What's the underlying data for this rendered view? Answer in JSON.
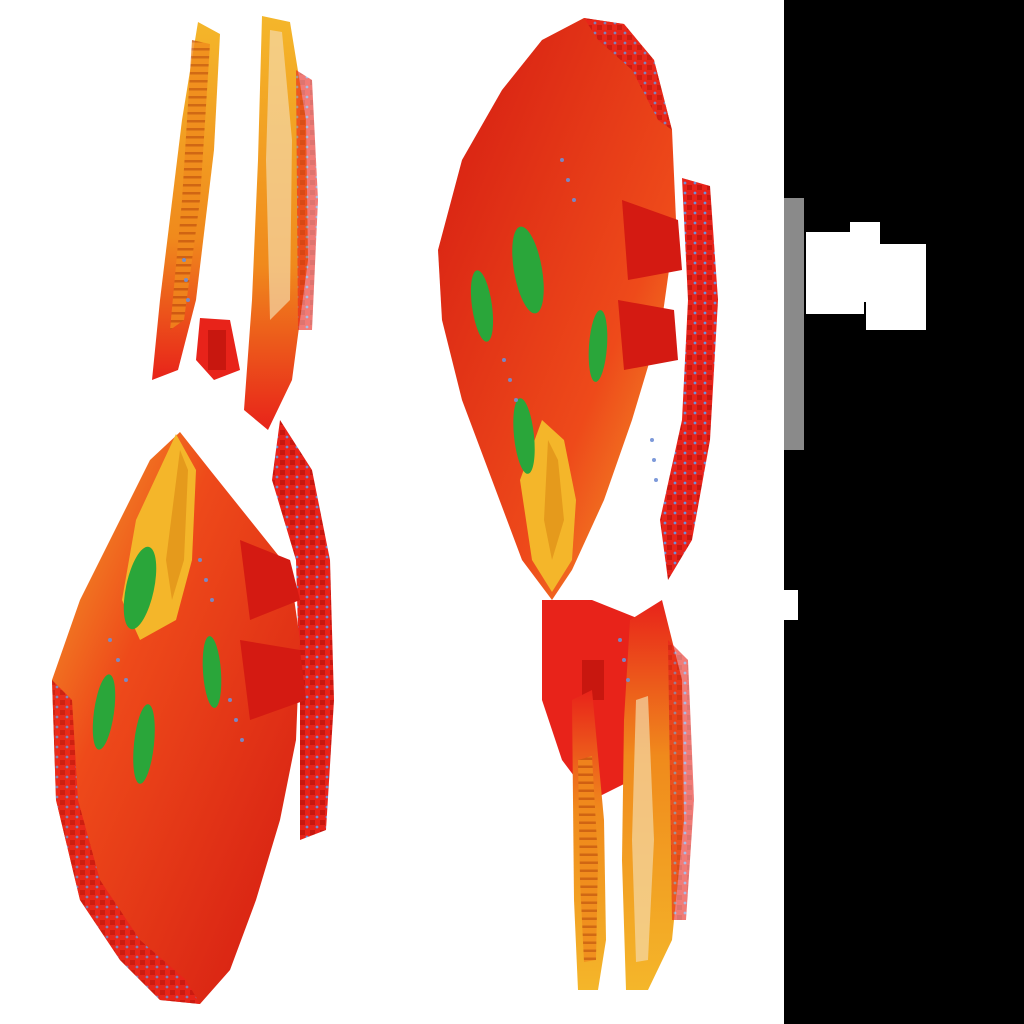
{
  "image": {
    "background": "#ffffff",
    "panel_color": "#000000",
    "subjects": [
      {
        "name": "ship-left",
        "orientation": "nose-down"
      },
      {
        "name": "ship-right",
        "orientation": "nose-up"
      }
    ]
  },
  "colors": {
    "hull_red": "#e8231a",
    "hull_dark": "#b5130d",
    "hull_orange": "#f08a1c",
    "hull_yellow": "#f4b62a",
    "window_green": "#2aa63a",
    "detail_blue": "#6f8fd6",
    "panel_gray": "#8a8a8a"
  }
}
